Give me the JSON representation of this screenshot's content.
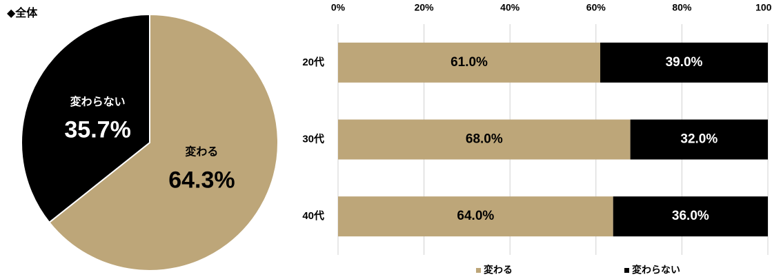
{
  "chart_data": [
    {
      "type": "pie",
      "title": "◆全体",
      "categories": [
        "変わる",
        "変わらない"
      ],
      "values": [
        64.3,
        35.7
      ],
      "value_labels": [
        "64.3%",
        "35.7%"
      ],
      "colors": [
        "#bda679",
        "#000000"
      ]
    },
    {
      "type": "stacked_bar_horizontal",
      "categories": [
        "20代",
        "30代",
        "40代"
      ],
      "series": [
        {
          "name": "変わる",
          "color": "#bda679",
          "values": [
            61.0,
            68.0,
            64.0
          ],
          "value_labels": [
            "61.0%",
            "68.0%",
            "64.0%"
          ]
        },
        {
          "name": "変わらない",
          "color": "#000000",
          "values": [
            39.0,
            32.0,
            36.0
          ],
          "value_labels": [
            "39.0%",
            "32.0%",
            "36.0%"
          ]
        }
      ],
      "xlim": [
        0,
        100
      ],
      "xticks": [
        {
          "value": 0,
          "label": "0%"
        },
        {
          "value": 20,
          "label": "20%"
        },
        {
          "value": 40,
          "label": "40%"
        },
        {
          "value": 60,
          "label": "60%"
        },
        {
          "value": 80,
          "label": "80%"
        },
        {
          "value": 100,
          "label": "100%"
        }
      ],
      "grid": true,
      "legend": "bottom"
    }
  ]
}
